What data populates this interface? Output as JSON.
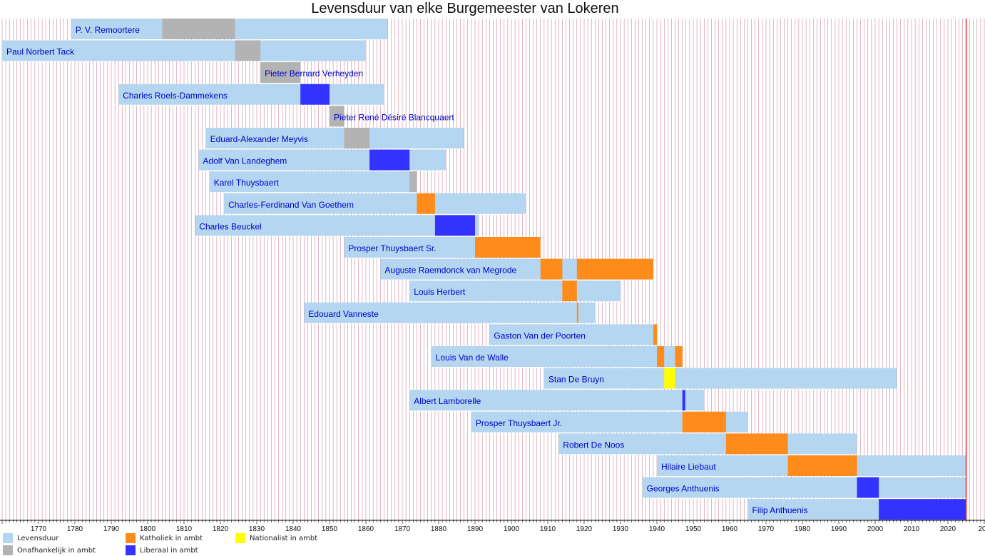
{
  "chart_data": {
    "type": "timeline",
    "title": "Levensduur van elke Burgemeester van Lokeren",
    "xlim": [
      1760,
      2030
    ],
    "x_ticks": [
      1770,
      1780,
      1790,
      1800,
      1810,
      1820,
      1830,
      1840,
      1850,
      1860,
      1870,
      1880,
      1890,
      1900,
      1910,
      1920,
      1930,
      1940,
      1950,
      1960,
      1970,
      1980,
      1990,
      2000,
      2010,
      2020,
      "20"
    ],
    "current_year": 2025,
    "colors": {
      "life": "#b4d6f0",
      "independent": "#b3b3b3",
      "catholic": "#ff8c1a",
      "nationalist": "#ffff00",
      "liberal": "#3333ff",
      "gridline": "#a52a4a",
      "label": "#0000c8",
      "today": "#ff0000"
    },
    "mayors": [
      {
        "name": "P. V. Remoortere",
        "life": [
          1779,
          1866
        ],
        "terms": [
          {
            "party": "independent",
            "start": 1804,
            "end": 1824
          }
        ]
      },
      {
        "name": "Paul Norbert Tack",
        "life": [
          1760,
          1860
        ],
        "terms": [
          {
            "party": "independent",
            "start": 1824,
            "end": 1831
          }
        ]
      },
      {
        "name": "Pieter Bernard Verheyden",
        "life": [
          1831,
          1842
        ],
        "terms": [
          {
            "party": "independent",
            "start": 1831,
            "end": 1842
          }
        ]
      },
      {
        "name": "Charles Roels-Dammekens",
        "life": [
          1792,
          1865
        ],
        "terms": [
          {
            "party": "liberal",
            "start": 1842,
            "end": 1850
          }
        ]
      },
      {
        "name": "Pieter René Désiré Blancquaert",
        "life": [
          1850,
          1854
        ],
        "terms": [
          {
            "party": "independent",
            "start": 1850,
            "end": 1854
          }
        ]
      },
      {
        "name": "Eduard-Alexander Meyvis",
        "life": [
          1816,
          1887
        ],
        "terms": [
          {
            "party": "independent",
            "start": 1854,
            "end": 1861
          }
        ]
      },
      {
        "name": "Adolf Van Landeghem",
        "life": [
          1814,
          1882
        ],
        "terms": [
          {
            "party": "liberal",
            "start": 1861,
            "end": 1872
          }
        ]
      },
      {
        "name": "Karel Thuysbaert",
        "life": [
          1817,
          1874
        ],
        "terms": [
          {
            "party": "independent",
            "start": 1872,
            "end": 1874
          }
        ]
      },
      {
        "name": "Charles-Ferdinand Van Goethem",
        "life": [
          1821,
          1904
        ],
        "terms": [
          {
            "party": "catholic",
            "start": 1874,
            "end": 1879
          }
        ]
      },
      {
        "name": "Charles Beuckel",
        "life": [
          1813,
          1891
        ],
        "terms": [
          {
            "party": "liberal",
            "start": 1879,
            "end": 1890
          }
        ]
      },
      {
        "name": "Prosper Thuysbaert Sr.",
        "life": [
          1854,
          1908
        ],
        "terms": [
          {
            "party": "catholic",
            "start": 1890,
            "end": 1908
          }
        ]
      },
      {
        "name": "Auguste Raemdonck van Megrode",
        "life": [
          1864,
          1939
        ],
        "terms": [
          {
            "party": "catholic",
            "start": 1908,
            "end": 1914
          },
          {
            "party": "catholic",
            "start": 1918,
            "end": 1939
          }
        ]
      },
      {
        "name": "Louis Herbert",
        "life": [
          1872,
          1930
        ],
        "terms": [
          {
            "party": "catholic",
            "start": 1914,
            "end": 1918
          }
        ]
      },
      {
        "name": "Edouard Vanneste",
        "life": [
          1843,
          1923
        ],
        "terms": [
          {
            "party": "catholic",
            "start": 1918,
            "end": 1918.4
          }
        ]
      },
      {
        "name": "Gaston Van der Poorten",
        "life": [
          1894,
          1940
        ],
        "terms": [
          {
            "party": "catholic",
            "start": 1939,
            "end": 1940
          }
        ]
      },
      {
        "name": "Louis Van de Walle",
        "life": [
          1878,
          1947
        ],
        "terms": [
          {
            "party": "catholic",
            "start": 1940,
            "end": 1942
          },
          {
            "party": "catholic",
            "start": 1945,
            "end": 1947
          }
        ]
      },
      {
        "name": "Stan De Bruyn",
        "life": [
          1909,
          2006
        ],
        "terms": [
          {
            "party": "nationalist",
            "start": 1942,
            "end": 1945
          }
        ]
      },
      {
        "name": "Albert Lamborelle",
        "life": [
          1872,
          1953
        ],
        "terms": [
          {
            "party": "liberal",
            "start": 1947,
            "end": 1947.8
          }
        ]
      },
      {
        "name": "Prosper Thuysbaert Jr.",
        "life": [
          1889,
          1965
        ],
        "terms": [
          {
            "party": "catholic",
            "start": 1947,
            "end": 1959
          }
        ]
      },
      {
        "name": "Robert De Noos",
        "life": [
          1913,
          1995
        ],
        "terms": [
          {
            "party": "catholic",
            "start": 1959,
            "end": 1976
          }
        ]
      },
      {
        "name": "Hilaire Liebaut",
        "life": [
          1940,
          2025
        ],
        "terms": [
          {
            "party": "catholic",
            "start": 1976,
            "end": 1995
          }
        ]
      },
      {
        "name": "Georges Anthuenis",
        "life": [
          1936,
          2025
        ],
        "terms": [
          {
            "party": "liberal",
            "start": 1995,
            "end": 2001
          }
        ]
      },
      {
        "name": "Filip Anthuenis",
        "life": [
          1965,
          2025
        ],
        "terms": [
          {
            "party": "liberal",
            "start": 2001,
            "end": 2025
          }
        ]
      }
    ],
    "legend": [
      {
        "key": "life",
        "label": "Levensduur"
      },
      {
        "key": "catholic",
        "label": "Katholiek in ambt"
      },
      {
        "key": "nationalist",
        "label": "Nationalist in ambt"
      },
      {
        "key": "independent",
        "label": "Onafhankelijk in ambt"
      },
      {
        "key": "liberal",
        "label": "Liberaal in ambt"
      }
    ]
  }
}
